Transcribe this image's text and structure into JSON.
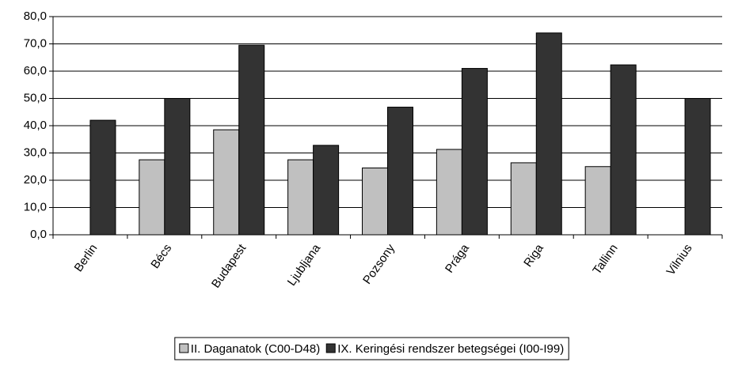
{
  "chart_data": {
    "type": "bar",
    "categories": [
      "Berlin",
      "Bécs",
      "Budapest",
      "Ljubljana",
      "Pozsony",
      "Prága",
      "Riga",
      "Tallinn",
      "Vilnius"
    ],
    "series": [
      {
        "name": "II. Daganatok (C00-D48)",
        "color": "#c0c0c0",
        "values": [
          null,
          27.5,
          38.5,
          27.5,
          24.5,
          31.3,
          26.4,
          25.0,
          null
        ]
      },
      {
        "name": "IX. Keringési rendszer betegségei (I00-I99)",
        "color": "#333333",
        "values": [
          42.0,
          50.0,
          69.5,
          32.8,
          46.8,
          61.0,
          74.0,
          62.3,
          50.0
        ]
      }
    ],
    "ylim": [
      0,
      80
    ],
    "yticks": [
      {
        "value": 0,
        "label": "0,0"
      },
      {
        "value": 10,
        "label": "10,0"
      },
      {
        "value": 20,
        "label": "20,0"
      },
      {
        "value": 30,
        "label": "30,0"
      },
      {
        "value": 40,
        "label": "40,0"
      },
      {
        "value": 50,
        "label": "50,0"
      },
      {
        "value": 60,
        "label": "60,0"
      },
      {
        "value": 70,
        "label": "70,0"
      },
      {
        "value": 80,
        "label": "80,0"
      }
    ],
    "grid": true,
    "legend": "bottom"
  }
}
